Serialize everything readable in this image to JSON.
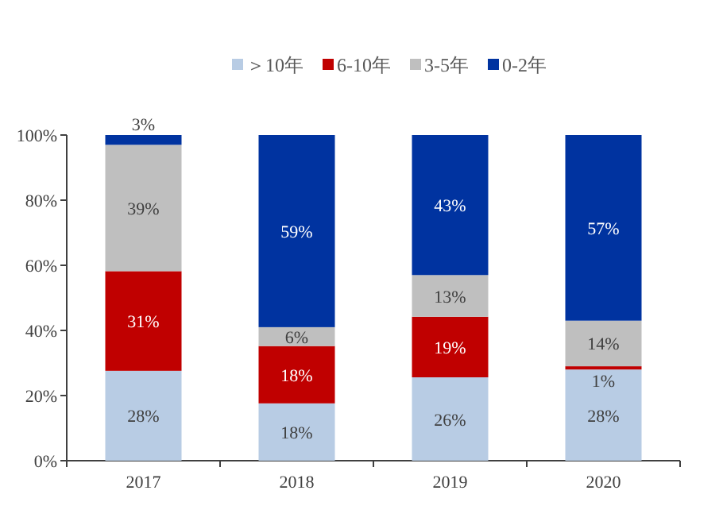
{
  "chart_data": {
    "type": "bar",
    "stacked": true,
    "legend": "top",
    "categories": [
      "2017",
      "2018",
      "2019",
      "2020"
    ],
    "series": [
      {
        "name": "＞10年",
        "color": "#b8cce4",
        "values": [
          27.6,
          17.6,
          25.6,
          28
        ],
        "value_labels": [
          "28%",
          "18%",
          "26%",
          "28%"
        ]
      },
      {
        "name": "6-10年",
        "color": "#c00000",
        "values": [
          30.6,
          17.6,
          18.6,
          1
        ],
        "value_labels": [
          "31%",
          "18%",
          "19%",
          "1%"
        ]
      },
      {
        "name": "3-5年",
        "color": "#bfbfbf",
        "values": [
          38.8,
          5.8,
          12.8,
          14
        ],
        "value_labels": [
          "39%",
          "6%",
          "13%",
          "14%"
        ]
      },
      {
        "name": "0-2年",
        "color": "#0033a0",
        "values": [
          3,
          59,
          43,
          57
        ],
        "value_labels": [
          "3%",
          "59%",
          "43%",
          "57%"
        ]
      }
    ],
    "ylim": [
      0,
      100
    ],
    "yticks": [
      {
        "value": 0,
        "label": "0%"
      },
      {
        "value": 20,
        "label": "20%"
      },
      {
        "value": 40,
        "label": "40%"
      },
      {
        "value": 60,
        "label": "60%"
      },
      {
        "value": 80,
        "label": "80%"
      },
      {
        "value": 100,
        "label": "100%"
      }
    ]
  }
}
